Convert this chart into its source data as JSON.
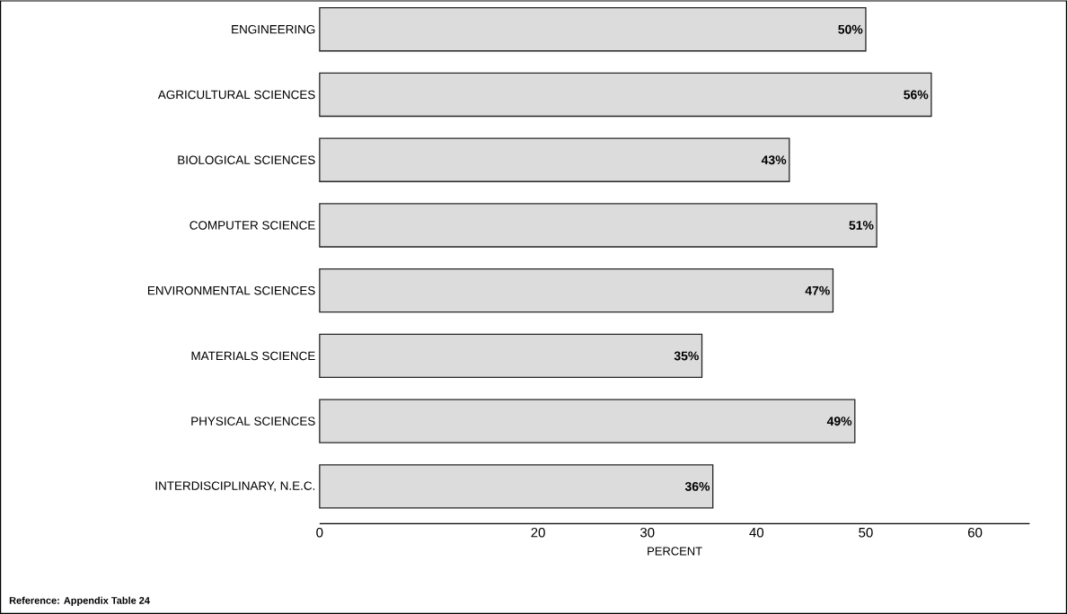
{
  "chart_data": {
    "type": "bar",
    "orientation": "horizontal",
    "categories": [
      "ENGINEERING",
      "AGRICULTURAL SCIENCES",
      "BIOLOGICAL SCIENCES",
      "COMPUTER SCIENCE",
      "ENVIRONMENTAL SCIENCES",
      "MATERIALS SCIENCE",
      "PHYSICAL SCIENCES",
      "INTERDISCIPLINARY, N.E.C."
    ],
    "values": [
      50,
      56,
      43,
      51,
      47,
      35,
      49,
      36
    ],
    "value_labels": [
      "50%",
      "56%",
      "43%",
      "51%",
      "47%",
      "35%",
      "49%",
      "36%"
    ],
    "color": "#dcdcdc",
    "xlim": [
      0,
      65
    ],
    "xticks": [
      0,
      20,
      30,
      40,
      50,
      60
    ],
    "xlabel": "PERCENT",
    "annotations": [
      "Reference:   Appendix Table 24"
    ]
  }
}
